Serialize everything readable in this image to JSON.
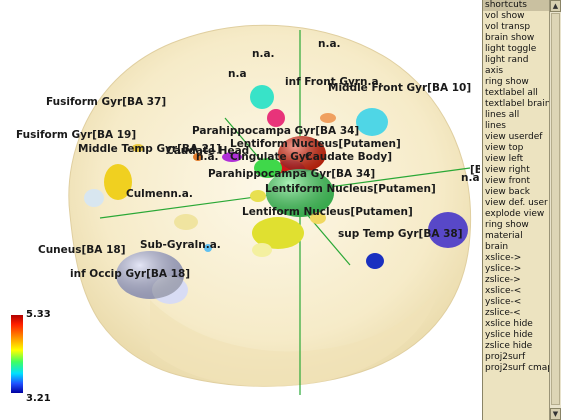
{
  "viewer": {
    "labels": [
      "n.a.",
      "n.a.",
      "inf Front Gyrn.a.",
      "Middle Front Gyr[BA 10]",
      "Fusiform Gyr[BA 37]",
      "Fusiform Gyr[BA 19]",
      "Parahippocampa Gyr[BA 34]",
      "Lentiform Nucleus[Putamen]",
      "Middle Temp Gyr[BA 21]",
      "Caudate Head",
      "n.a.",
      "Cingulate Gyr",
      "Caudate Body]",
      "Parahippocampa Gyr[BA 34]",
      "Lentiform Nucleus[Putamen]",
      "Culmenn.a.",
      "Lentiform Nucleus[Putamen]",
      "Sub-Gyraln.a.",
      "Cuneus[BA 18]",
      "sup Temp Gyr[BA 38]",
      "inf Occip Gyr[BA 18]",
      "n.a",
      "[B"
    ],
    "colorbar": {
      "max": "5.33",
      "min": "3.21"
    }
  },
  "panel": {
    "items": [
      "shortcuts",
      "vol show",
      "vol transp",
      "brain show",
      "light toggle",
      "light rand",
      "axis",
      "ring show",
      "textlabel all",
      "textlabel brain",
      "lines all",
      "lines",
      "view userdef",
      "view top",
      "view left",
      "view right",
      "view front",
      "view back",
      "view def. user",
      "explode view",
      "ring show",
      "material",
      "brain",
      "xslice->",
      "yslice->",
      "zslice->",
      "xslice-<",
      "yslice-<",
      "zslice-<",
      "xslice hide",
      "yslice hide",
      "zslice hide",
      "proj2surf",
      "proj2surf cmap"
    ],
    "selected_index": 0,
    "scroll_up_icon": "arrow-up-icon",
    "scroll_down_icon": "arrow-down-icon"
  }
}
